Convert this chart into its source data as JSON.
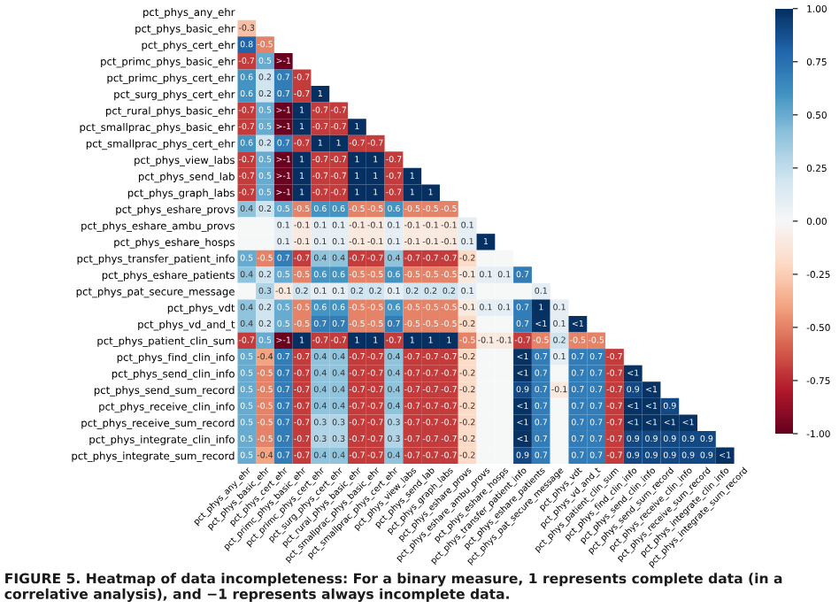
{
  "chart_data": {
    "type": "heatmap",
    "categories": [
      "pct_phys_any_ehr",
      "pct_phys_basic_ehr",
      "pct_phys_cert_ehr",
      "pct_primc_phys_basic_ehr",
      "pct_primc_phys_cert_ehr",
      "pct_surg_phys_cert_ehr",
      "pct_rural_phys_basic_ehr",
      "pct_smallprac_phys_basic_ehr",
      "pct_smallprac_phys_cert_ehr",
      "pct_phys_view_labs",
      "pct_phys_send_lab",
      "pct_phys_graph_labs",
      "pct_phys_eshare_provs",
      "pct_phys_eshare_ambu_provs",
      "pct_phys_eshare_hosps",
      "pct_phys_transfer_patient_info",
      "pct_phys_eshare_patients",
      "pct_phys_pat_secure_message",
      "pct_phys_vdt",
      "pct_phys_vd_and_t",
      "pct_phys_patient_clin_sum",
      "pct_phys_find_clin_info",
      "pct_phys_send_clin_info",
      "pct_phys_send_sum_record",
      "pct_phys_receive_clin_info",
      "pct_phys_receive_sum_record",
      "pct_phys_integrate_clin_info",
      "pct_phys_integrate_sum_record"
    ],
    "y_categories": [
      "pct_phys_any_ehr",
      "pct_phys_basic_ehr",
      "pct_phys_cert_ehr",
      "pct_primc_phys_basic_ehr",
      "pct_primc_phys_cert_ehr",
      "pct_surg_phys_cert_ehr",
      "pct_rural_phys_basic_ehr",
      "pct_smallprac_phys_basic_ehr",
      "pct_smallprac_phys_cert_ehr",
      "pct_phys_view_labs",
      "pct_phys_send_lab",
      "pct_phys_graph_labs",
      "pct_phys_eshare_provs",
      "pct_phys_eshare_ambu_provs",
      "pct_phys_eshare_hosps",
      "pct_phys_transfer_patient_info",
      "pct_phys_eshare_patients",
      "pct_phys_pat_secure_message",
      "pct_phys_vdt",
      "pct_phys_vd_and_t",
      "pct_phys_patient_clin_sum",
      "pct_phys_find_clin_info",
      "pct_phys_send_clin_info",
      "pct_phys_send_sum_record",
      "pct_phys_receive_clin_info",
      "pct_phys_receive_sum_record",
      "pct_phys_integrate_clin_info",
      "pct_phys_integrate_sum_record"
    ],
    "cells": [
      [
        null,
        null,
        null,
        null,
        null,
        null,
        null,
        null,
        null,
        null,
        null,
        null,
        null,
        null,
        null,
        null,
        null,
        null,
        null,
        null,
        null,
        null,
        null,
        null,
        null,
        null,
        null,
        null
      ],
      [
        -0.3,
        null,
        null,
        null,
        null,
        null,
        null,
        null,
        null,
        null,
        null,
        null,
        null,
        null,
        null,
        null,
        null,
        null,
        null,
        null,
        null,
        null,
        null,
        null,
        null,
        null,
        null,
        null
      ],
      [
        0.8,
        -0.5,
        null,
        null,
        null,
        null,
        null,
        null,
        null,
        null,
        null,
        null,
        null,
        null,
        null,
        null,
        null,
        null,
        null,
        null,
        null,
        null,
        null,
        null,
        null,
        null,
        null,
        null
      ],
      [
        -0.7,
        0.5,
        -0.99,
        null,
        null,
        null,
        null,
        null,
        null,
        null,
        null,
        null,
        null,
        null,
        null,
        null,
        null,
        null,
        null,
        null,
        null,
        null,
        null,
        null,
        null,
        null,
        null,
        null
      ],
      [
        0.6,
        0.2,
        0.7,
        -0.7,
        null,
        null,
        null,
        null,
        null,
        null,
        null,
        null,
        null,
        null,
        null,
        null,
        null,
        null,
        null,
        null,
        null,
        null,
        null,
        null,
        null,
        null,
        null,
        null
      ],
      [
        0.6,
        0.2,
        0.7,
        -0.7,
        1,
        null,
        null,
        null,
        null,
        null,
        null,
        null,
        null,
        null,
        null,
        null,
        null,
        null,
        null,
        null,
        null,
        null,
        null,
        null,
        null,
        null,
        null,
        null
      ],
      [
        -0.7,
        0.5,
        -0.99,
        1,
        -0.7,
        -0.7,
        null,
        null,
        null,
        null,
        null,
        null,
        null,
        null,
        null,
        null,
        null,
        null,
        null,
        null,
        null,
        null,
        null,
        null,
        null,
        null,
        null,
        null
      ],
      [
        -0.7,
        0.5,
        -0.99,
        1,
        -0.7,
        -0.7,
        1,
        null,
        null,
        null,
        null,
        null,
        null,
        null,
        null,
        null,
        null,
        null,
        null,
        null,
        null,
        null,
        null,
        null,
        null,
        null,
        null,
        null
      ],
      [
        0.6,
        0.2,
        0.7,
        -0.7,
        1,
        1,
        -0.7,
        -0.7,
        null,
        null,
        null,
        null,
        null,
        null,
        null,
        null,
        null,
        null,
        null,
        null,
        null,
        null,
        null,
        null,
        null,
        null,
        null,
        null
      ],
      [
        -0.7,
        0.5,
        -0.99,
        1,
        -0.7,
        -0.7,
        1,
        1,
        -0.7,
        null,
        null,
        null,
        null,
        null,
        null,
        null,
        null,
        null,
        null,
        null,
        null,
        null,
        null,
        null,
        null,
        null,
        null,
        null
      ],
      [
        -0.7,
        0.5,
        -0.99,
        1,
        -0.7,
        -0.7,
        1,
        1,
        -0.7,
        1,
        null,
        null,
        null,
        null,
        null,
        null,
        null,
        null,
        null,
        null,
        null,
        null,
        null,
        null,
        null,
        null,
        null,
        null
      ],
      [
        -0.7,
        0.5,
        -0.99,
        1,
        -0.7,
        -0.7,
        1,
        1,
        -0.7,
        1,
        1,
        null,
        null,
        null,
        null,
        null,
        null,
        null,
        null,
        null,
        null,
        null,
        null,
        null,
        null,
        null,
        null,
        null
      ],
      [
        0.4,
        0.2,
        0.5,
        -0.5,
        0.6,
        0.6,
        -0.5,
        -0.5,
        0.6,
        -0.5,
        -0.5,
        -0.5,
        null,
        null,
        null,
        null,
        null,
        null,
        null,
        null,
        null,
        null,
        null,
        null,
        null,
        null,
        null,
        null
      ],
      [
        0,
        0,
        0.1,
        -0.1,
        0.1,
        0.1,
        -0.1,
        -0.1,
        0.1,
        -0.1,
        -0.1,
        -0.1,
        0.1,
        null,
        null,
        null,
        null,
        null,
        null,
        null,
        null,
        null,
        null,
        null,
        null,
        null,
        null,
        null
      ],
      [
        0,
        0,
        0.1,
        -0.1,
        0.1,
        0.1,
        -0.1,
        -0.1,
        0.1,
        -0.1,
        -0.1,
        -0.1,
        0.1,
        1,
        null,
        null,
        null,
        null,
        null,
        null,
        null,
        null,
        null,
        null,
        null,
        null,
        null,
        null
      ],
      [
        0.5,
        -0.5,
        0.7,
        -0.7,
        0.4,
        0.4,
        -0.7,
        -0.7,
        0.4,
        -0.7,
        -0.7,
        -0.7,
        -0.2,
        0,
        0,
        null,
        null,
        null,
        null,
        null,
        null,
        null,
        null,
        null,
        null,
        null,
        null,
        null
      ],
      [
        0.4,
        0.2,
        0.5,
        -0.5,
        0.6,
        0.6,
        -0.5,
        -0.5,
        0.6,
        -0.5,
        -0.5,
        -0.5,
        -0.1,
        0.1,
        0.1,
        0.7,
        null,
        null,
        null,
        null,
        null,
        null,
        null,
        null,
        null,
        null,
        null,
        null
      ],
      [
        0,
        0.3,
        -0.1,
        0.2,
        0.1,
        0.1,
        0.2,
        0.2,
        0.1,
        0.2,
        0.2,
        0.2,
        0.1,
        0,
        0,
        0,
        0.1,
        null,
        null,
        null,
        null,
        null,
        null,
        null,
        null,
        null,
        null,
        null
      ],
      [
        0.4,
        0.2,
        0.5,
        -0.5,
        0.6,
        0.6,
        -0.5,
        -0.5,
        0.6,
        -0.5,
        -0.5,
        -0.5,
        -0.1,
        0.1,
        0.1,
        0.7,
        1,
        0.1,
        null,
        null,
        null,
        null,
        null,
        null,
        null,
        null,
        null,
        null
      ],
      [
        0.4,
        0.2,
        0.5,
        -0.5,
        0.7,
        0.7,
        -0.5,
        -0.5,
        0.7,
        -0.5,
        -0.5,
        -0.5,
        -0.2,
        0,
        0,
        0.7,
        0.99,
        0.1,
        0.99,
        null,
        null,
        null,
        null,
        null,
        null,
        null,
        null,
        null
      ],
      [
        -0.7,
        0.5,
        -0.99,
        1,
        -0.7,
        -0.7,
        1,
        1,
        -0.7,
        1,
        1,
        1,
        -0.5,
        -0.1,
        -0.1,
        -0.7,
        -0.5,
        0.2,
        -0.5,
        -0.5,
        null,
        null,
        null,
        null,
        null,
        null,
        null,
        null
      ],
      [
        0.5,
        -0.4,
        0.7,
        -0.7,
        0.4,
        0.4,
        -0.7,
        -0.7,
        0.4,
        -0.7,
        -0.7,
        -0.7,
        -0.2,
        0,
        0,
        0.99,
        0.7,
        0.1,
        0.7,
        0.7,
        -0.7,
        null,
        null,
        null,
        null,
        null,
        null,
        null
      ],
      [
        0.5,
        -0.5,
        0.7,
        -0.7,
        0.4,
        0.4,
        -0.7,
        -0.7,
        0.4,
        -0.7,
        -0.7,
        -0.7,
        -0.2,
        0,
        0,
        0.99,
        0.7,
        0,
        0.7,
        0.7,
        -0.7,
        0.99,
        null,
        null,
        null,
        null,
        null,
        null
      ],
      [
        0.5,
        -0.5,
        0.7,
        -0.7,
        0.4,
        0.4,
        -0.7,
        -0.7,
        0.4,
        -0.7,
        -0.7,
        -0.7,
        -0.2,
        0,
        0,
        0.9,
        0.7,
        -0.1,
        0.7,
        0.7,
        -0.7,
        0.9,
        0.99,
        null,
        null,
        null,
        null,
        null
      ],
      [
        0.5,
        -0.5,
        0.7,
        -0.7,
        0.4,
        0.4,
        -0.7,
        -0.7,
        0.4,
        -0.7,
        -0.7,
        -0.7,
        -0.2,
        0,
        0,
        0.99,
        0.7,
        0,
        0.7,
        0.7,
        -0.7,
        0.99,
        0.99,
        0.9,
        null,
        null,
        null,
        null
      ],
      [
        0.5,
        -0.5,
        0.7,
        -0.7,
        0.3,
        0.3,
        -0.7,
        -0.7,
        0.3,
        -0.7,
        -0.7,
        -0.7,
        -0.2,
        0,
        0,
        0.99,
        0.7,
        0,
        0.7,
        0.7,
        -0.7,
        0.99,
        0.99,
        0.99,
        0.99,
        null,
        null,
        null
      ],
      [
        0.5,
        -0.5,
        0.7,
        -0.7,
        0.3,
        0.3,
        -0.7,
        -0.7,
        0.3,
        -0.7,
        -0.7,
        -0.7,
        -0.2,
        0,
        0,
        0.99,
        0.7,
        0,
        0.7,
        0.7,
        -0.7,
        0.9,
        0.9,
        0.9,
        0.9,
        0.9,
        null,
        null
      ],
      [
        0.5,
        -0.4,
        0.7,
        -0.7,
        0.4,
        0.4,
        -0.7,
        -0.7,
        0.4,
        -0.7,
        -0.7,
        -0.7,
        -0.2,
        0,
        0,
        0.9,
        0.7,
        0,
        0.7,
        0.7,
        -0.7,
        0.9,
        0.9,
        0.9,
        0.9,
        0.9,
        0.99,
        null
      ]
    ],
    "cell_labels": [
      [
        null,
        null,
        null,
        null,
        null,
        null,
        null,
        null,
        null,
        null,
        null,
        null,
        null,
        null,
        null,
        null,
        null,
        null,
        null,
        null,
        null,
        null,
        null,
        null,
        null,
        null,
        null,
        null
      ],
      [
        "-0.3",
        null,
        null,
        null,
        null,
        null,
        null,
        null,
        null,
        null,
        null,
        null,
        null,
        null,
        null,
        null,
        null,
        null,
        null,
        null,
        null,
        null,
        null,
        null,
        null,
        null,
        null,
        null
      ],
      [
        "0.8",
        "-0.5",
        null,
        null,
        null,
        null,
        null,
        null,
        null,
        null,
        null,
        null,
        null,
        null,
        null,
        null,
        null,
        null,
        null,
        null,
        null,
        null,
        null,
        null,
        null,
        null,
        null,
        null
      ],
      [
        "-0.7",
        "0.5",
        ">-1",
        null,
        null,
        null,
        null,
        null,
        null,
        null,
        null,
        null,
        null,
        null,
        null,
        null,
        null,
        null,
        null,
        null,
        null,
        null,
        null,
        null,
        null,
        null,
        null,
        null
      ],
      [
        "0.6",
        "0.2",
        "0.7",
        "-0.7",
        null,
        null,
        null,
        null,
        null,
        null,
        null,
        null,
        null,
        null,
        null,
        null,
        null,
        null,
        null,
        null,
        null,
        null,
        null,
        null,
        null,
        null,
        null,
        null
      ],
      [
        "0.6",
        "0.2",
        "0.7",
        "-0.7",
        "1",
        null,
        null,
        null,
        null,
        null,
        null,
        null,
        null,
        null,
        null,
        null,
        null,
        null,
        null,
        null,
        null,
        null,
        null,
        null,
        null,
        null,
        null,
        null
      ],
      [
        "-0.7",
        "0.5",
        ">-1",
        "1",
        "-0.7",
        "-0.7",
        null,
        null,
        null,
        null,
        null,
        null,
        null,
        null,
        null,
        null,
        null,
        null,
        null,
        null,
        null,
        null,
        null,
        null,
        null,
        null,
        null,
        null
      ],
      [
        "-0.7",
        "0.5",
        ">-1",
        "1",
        "-0.7",
        "-0.7",
        "1",
        null,
        null,
        null,
        null,
        null,
        null,
        null,
        null,
        null,
        null,
        null,
        null,
        null,
        null,
        null,
        null,
        null,
        null,
        null,
        null,
        null
      ],
      [
        "0.6",
        "0.2",
        "0.7",
        "-0.7",
        "1",
        "1",
        "-0.7",
        "-0.7",
        null,
        null,
        null,
        null,
        null,
        null,
        null,
        null,
        null,
        null,
        null,
        null,
        null,
        null,
        null,
        null,
        null,
        null,
        null,
        null
      ],
      [
        "-0.7",
        "0.5",
        ">-1",
        "1",
        "-0.7",
        "-0.7",
        "1",
        "1",
        "-0.7",
        null,
        null,
        null,
        null,
        null,
        null,
        null,
        null,
        null,
        null,
        null,
        null,
        null,
        null,
        null,
        null,
        null,
        null,
        null
      ],
      [
        "-0.7",
        "0.5",
        ">-1",
        "1",
        "-0.7",
        "-0.7",
        "1",
        "1",
        "-0.7",
        "1",
        null,
        null,
        null,
        null,
        null,
        null,
        null,
        null,
        null,
        null,
        null,
        null,
        null,
        null,
        null,
        null,
        null,
        null
      ],
      [
        "-0.7",
        "0.5",
        ">-1",
        "1",
        "-0.7",
        "-0.7",
        "1",
        "1",
        "-0.7",
        "1",
        "1",
        null,
        null,
        null,
        null,
        null,
        null,
        null,
        null,
        null,
        null,
        null,
        null,
        null,
        null,
        null,
        null,
        null
      ],
      [
        "0.4",
        "0.2",
        "0.5",
        "-0.5",
        "0.6",
        "0.6",
        "-0.5",
        "-0.5",
        "0.6",
        "-0.5",
        "-0.5",
        "-0.5",
        null,
        null,
        null,
        null,
        null,
        null,
        null,
        null,
        null,
        null,
        null,
        null,
        null,
        null,
        null,
        null
      ],
      [
        null,
        null,
        "0.1",
        "-0.1",
        "0.1",
        "0.1",
        "-0.1",
        "-0.1",
        "0.1",
        "-0.1",
        "-0.1",
        "-0.1",
        "0.1",
        null,
        null,
        null,
        null,
        null,
        null,
        null,
        null,
        null,
        null,
        null,
        null,
        null,
        null,
        null
      ],
      [
        null,
        null,
        "0.1",
        "-0.1",
        "0.1",
        "0.1",
        "-0.1",
        "-0.1",
        "0.1",
        "-0.1",
        "-0.1",
        "-0.1",
        "0.1",
        "1",
        null,
        null,
        null,
        null,
        null,
        null,
        null,
        null,
        null,
        null,
        null,
        null,
        null,
        null
      ],
      [
        "0.5",
        "-0.5",
        "0.7",
        "-0.7",
        "0.4",
        "0.4",
        "-0.7",
        "-0.7",
        "0.4",
        "-0.7",
        "-0.7",
        "-0.7",
        "-0.2",
        null,
        null,
        null,
        null,
        null,
        null,
        null,
        null,
        null,
        null,
        null,
        null,
        null,
        null,
        null
      ],
      [
        "0.4",
        "0.2",
        "0.5",
        "-0.5",
        "0.6",
        "0.6",
        "-0.5",
        "-0.5",
        "0.6",
        "-0.5",
        "-0.5",
        "-0.5",
        "-0.1",
        "0.1",
        "0.1",
        "0.7",
        null,
        null,
        null,
        null,
        null,
        null,
        null,
        null,
        null,
        null,
        null,
        null
      ],
      [
        null,
        "0.3",
        "-0.1",
        "0.2",
        "0.1",
        "0.1",
        "0.2",
        "0.2",
        "0.1",
        "0.2",
        "0.2",
        "0.2",
        "0.1",
        null,
        null,
        null,
        "0.1",
        null,
        null,
        null,
        null,
        null,
        null,
        null,
        null,
        null,
        null,
        null
      ],
      [
        "0.4",
        "0.2",
        "0.5",
        "-0.5",
        "0.6",
        "0.6",
        "-0.5",
        "-0.5",
        "0.6",
        "-0.5",
        "-0.5",
        "-0.5",
        "-0.1",
        "0.1",
        "0.1",
        "0.7",
        "1",
        "0.1",
        null,
        null,
        null,
        null,
        null,
        null,
        null,
        null,
        null,
        null
      ],
      [
        "0.4",
        "0.2",
        "0.5",
        "-0.5",
        "0.7",
        "0.7",
        "-0.5",
        "-0.5",
        "0.7",
        "-0.5",
        "-0.5",
        "-0.5",
        "-0.2",
        null,
        null,
        "0.7",
        "<1",
        "0.1",
        "<1",
        null,
        null,
        null,
        null,
        null,
        null,
        null,
        null,
        null
      ],
      [
        "-0.7",
        "0.5",
        ">-1",
        "1",
        "-0.7",
        "-0.7",
        "1",
        "1",
        "-0.7",
        "1",
        "1",
        "1",
        "-0.5",
        "-0.1",
        "-0.1",
        "-0.7",
        "-0.5",
        "0.2",
        "-0.5",
        "-0.5",
        null,
        null,
        null,
        null,
        null,
        null,
        null,
        null
      ],
      [
        "0.5",
        "-0.4",
        "0.7",
        "-0.7",
        "0.4",
        "0.4",
        "-0.7",
        "-0.7",
        "0.4",
        "-0.7",
        "-0.7",
        "-0.7",
        "-0.2",
        null,
        null,
        "<1",
        "0.7",
        "0.1",
        "0.7",
        "0.7",
        "-0.7",
        null,
        null,
        null,
        null,
        null,
        null,
        null
      ],
      [
        "0.5",
        "-0.5",
        "0.7",
        "-0.7",
        "0.4",
        "0.4",
        "-0.7",
        "-0.7",
        "0.4",
        "-0.7",
        "-0.7",
        "-0.7",
        "-0.2",
        null,
        null,
        "<1",
        "0.7",
        null,
        "0.7",
        "0.7",
        "-0.7",
        "<1",
        null,
        null,
        null,
        null,
        null,
        null
      ],
      [
        "0.5",
        "-0.5",
        "0.7",
        "-0.7",
        "0.4",
        "0.4",
        "-0.7",
        "-0.7",
        "0.4",
        "-0.7",
        "-0.7",
        "-0.7",
        "-0.2",
        null,
        null,
        "0.9",
        "0.7",
        "-0.1",
        "0.7",
        "0.7",
        "-0.7",
        "0.9",
        "<1",
        null,
        null,
        null,
        null,
        null
      ],
      [
        "0.5",
        "-0.5",
        "0.7",
        "-0.7",
        "0.4",
        "0.4",
        "-0.7",
        "-0.7",
        "0.4",
        "-0.7",
        "-0.7",
        "-0.7",
        "-0.2",
        null,
        null,
        "<1",
        "0.7",
        null,
        "0.7",
        "0.7",
        "-0.7",
        "<1",
        "<1",
        "0.9",
        null,
        null,
        null,
        null
      ],
      [
        "0.5",
        "-0.5",
        "0.7",
        "-0.7",
        "0.3",
        "0.3",
        "-0.7",
        "-0.7",
        "0.3",
        "-0.7",
        "-0.7",
        "-0.7",
        "-0.2",
        null,
        null,
        "<1",
        "0.7",
        null,
        "0.7",
        "0.7",
        "-0.7",
        "<1",
        "<1",
        "<1",
        "<1",
        null,
        null,
        null
      ],
      [
        "0.5",
        "-0.5",
        "0.7",
        "-0.7",
        "0.3",
        "0.3",
        "-0.7",
        "-0.7",
        "0.3",
        "-0.7",
        "-0.7",
        "-0.7",
        "-0.2",
        null,
        null,
        "<1",
        "0.7",
        null,
        "0.7",
        "0.7",
        "-0.7",
        "0.9",
        "0.9",
        "0.9",
        "0.9",
        "0.9",
        null,
        null
      ],
      [
        "0.5",
        "-0.4",
        "0.7",
        "-0.7",
        "0.4",
        "0.4",
        "-0.7",
        "-0.7",
        "0.4",
        "-0.7",
        "-0.7",
        "-0.7",
        "-0.2",
        null,
        null,
        "0.9",
        "0.7",
        null,
        "0.7",
        "0.7",
        "-0.7",
        "0.9",
        "0.9",
        "0.9",
        "0.9",
        "0.9",
        "<1",
        null
      ]
    ],
    "clim": [
      -1,
      1
    ],
    "cticks": [
      {
        "value": -1,
        "label": "-1.00"
      },
      {
        "value": -0.75,
        "label": "-0.75"
      },
      {
        "value": -0.5,
        "label": "-0.50"
      },
      {
        "value": -0.25,
        "label": "-0.25"
      },
      {
        "value": 0,
        "label": "0.00"
      },
      {
        "value": 0.25,
        "label": "0.25"
      },
      {
        "value": 0.5,
        "label": "0.50"
      },
      {
        "value": 0.75,
        "label": "0.75"
      },
      {
        "value": 1,
        "label": "1.00"
      }
    ],
    "annotations": [
      "FIGURE 5. Heatmap of data incompleteness: For a binary measure, 1 represents complete data (in a correlative analysis), and −1 represents always incomplete data."
    ]
  }
}
